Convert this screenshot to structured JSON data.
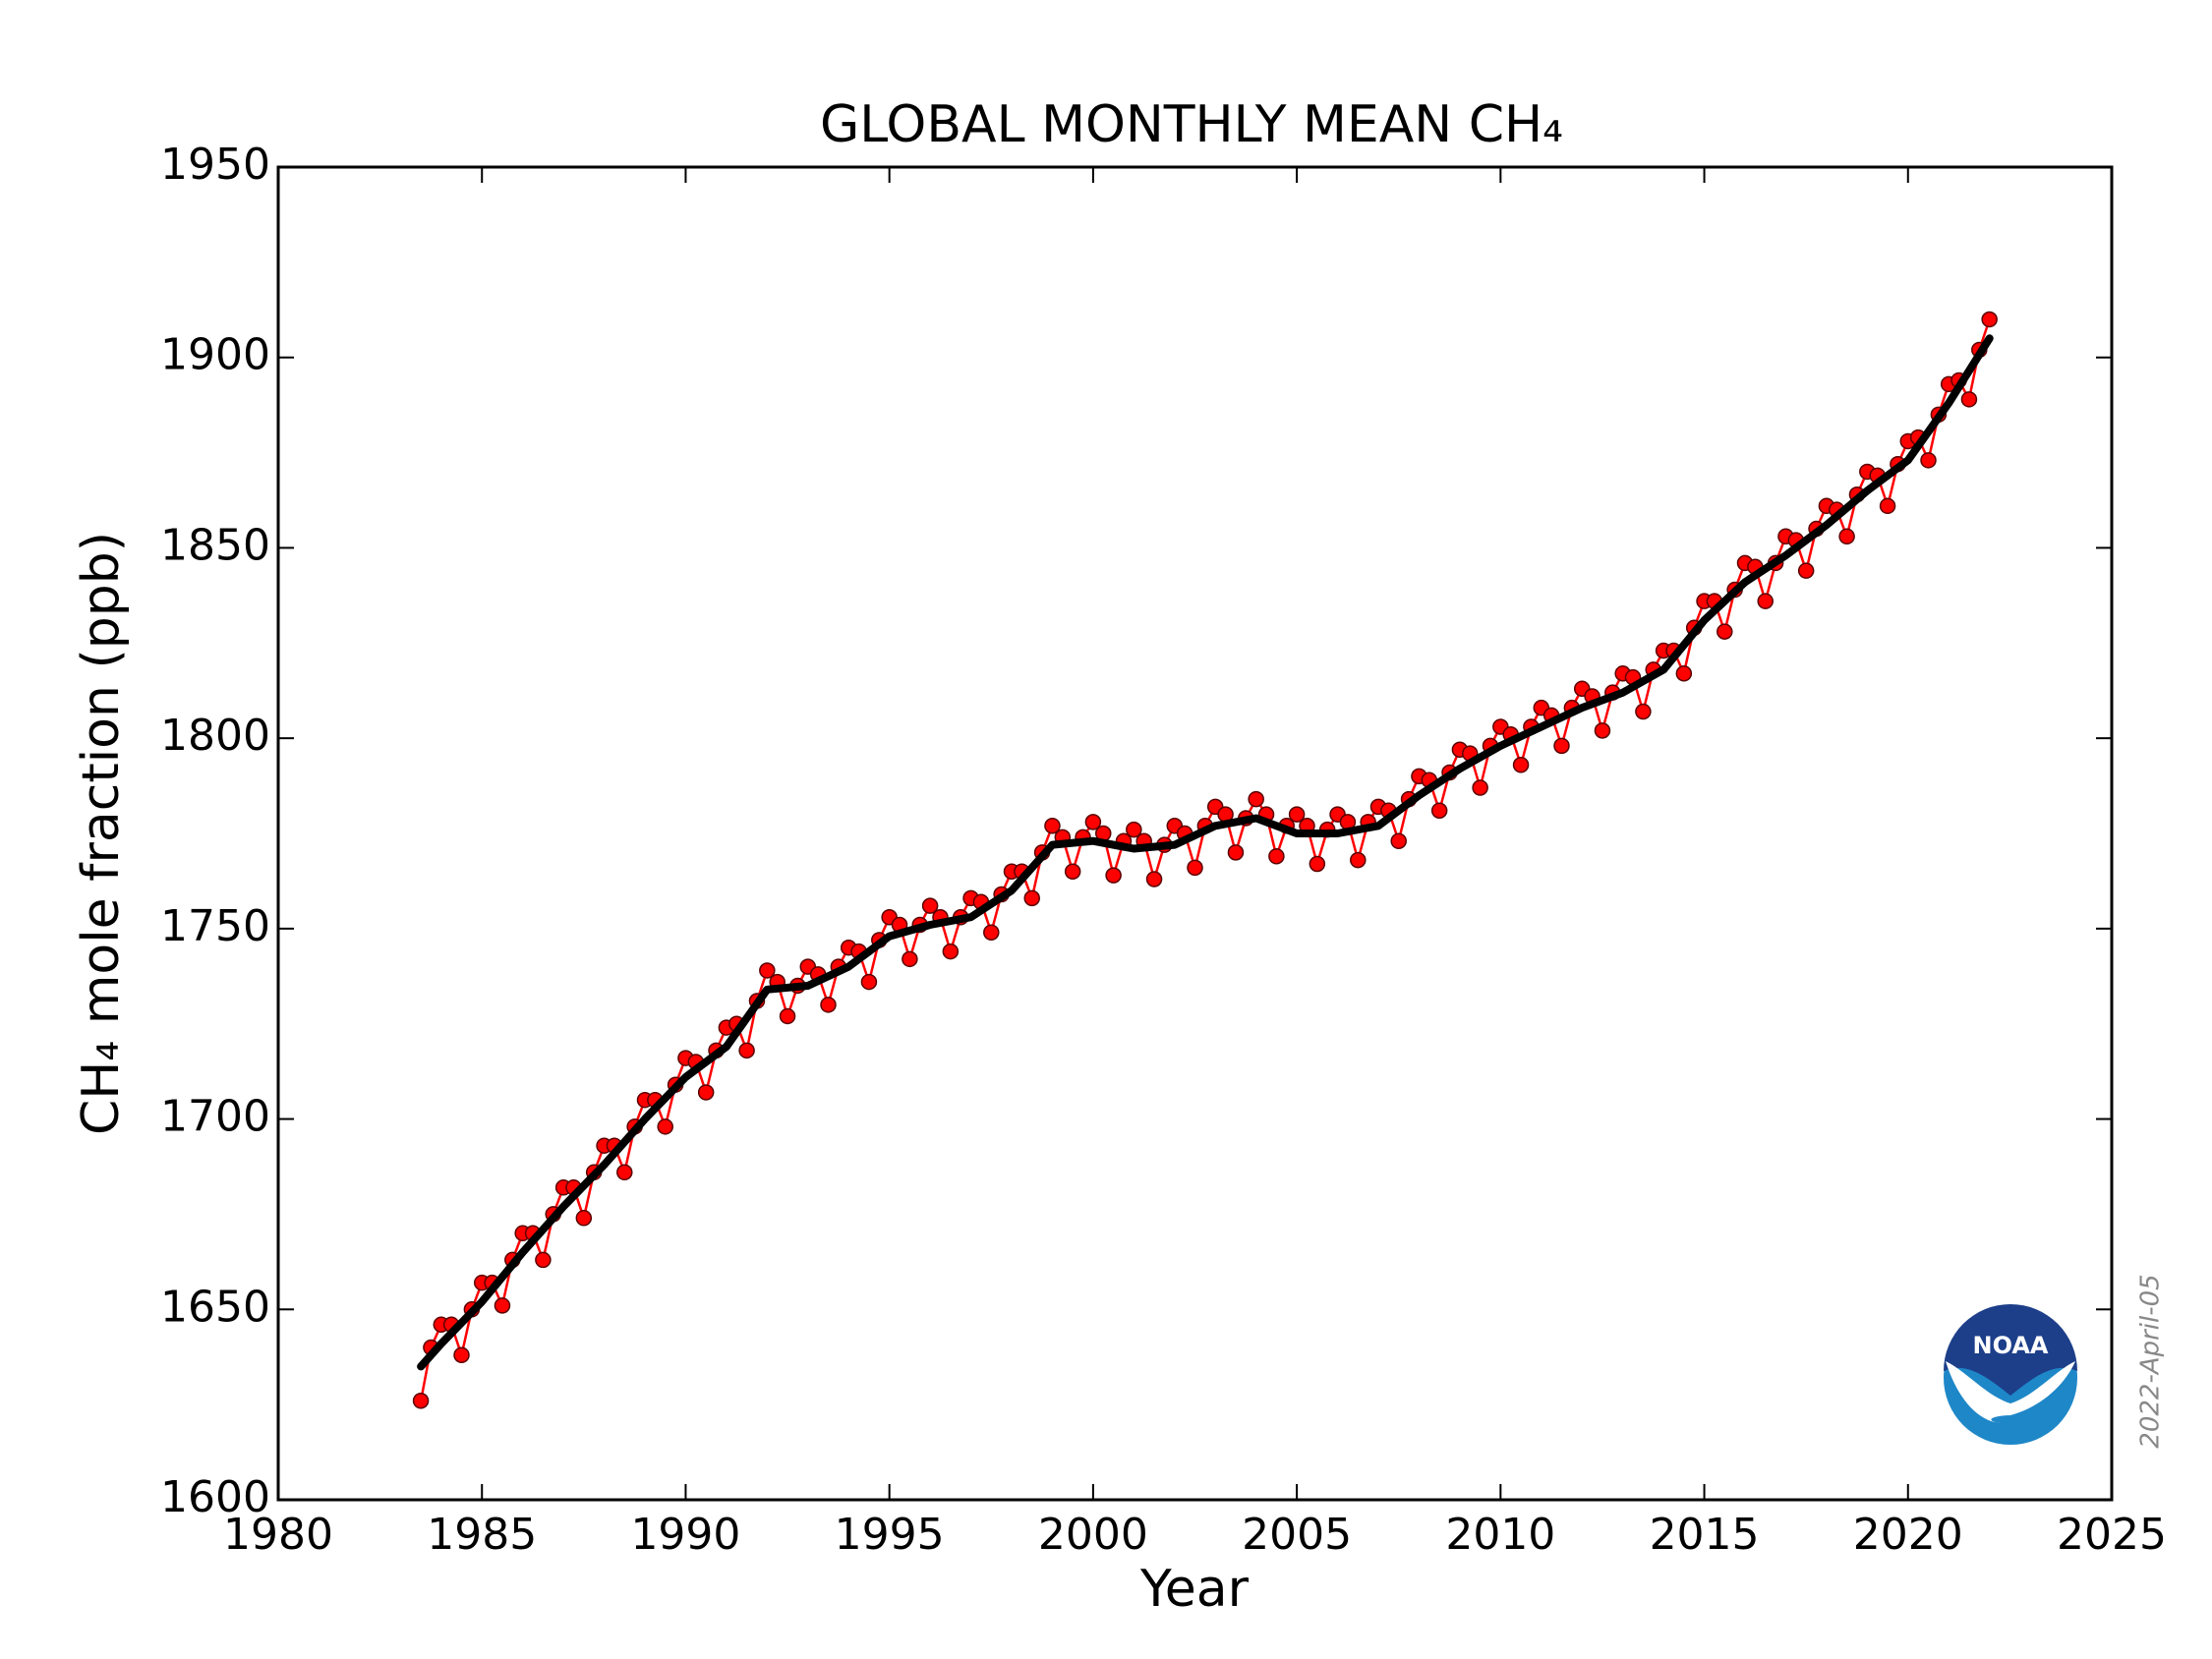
{
  "chart_data": {
    "type": "line",
    "title": "GLOBAL MONTHLY MEAN CH₄",
    "x_label": "Year",
    "y_label": "CH₄ mole fraction (ppb)",
    "annotation": "2022-April-05",
    "logo_text": "NOAA",
    "xlim": [
      1980,
      2025
    ],
    "xticks": [
      1980,
      1985,
      1990,
      1995,
      2000,
      2005,
      2010,
      2015,
      2020,
      2025
    ],
    "ylim": [
      1600,
      1950
    ],
    "yticks": [
      1600,
      1650,
      1700,
      1750,
      1800,
      1850,
      1900,
      1950
    ],
    "series": [
      {
        "color": "#ff0000",
        "markers": true,
        "x": [
          1983.5,
          1983.75,
          1984,
          1984.25,
          1984.5,
          1984.75,
          1985,
          1985.25,
          1985.5,
          1985.75,
          1986,
          1986.25,
          1986.5,
          1986.75,
          1987,
          1987.25,
          1987.5,
          1987.75,
          1988,
          1988.25,
          1988.5,
          1988.75,
          1989,
          1989.25,
          1989.5,
          1989.75,
          1990,
          1990.25,
          1990.5,
          1990.75,
          1991,
          1991.25,
          1991.5,
          1991.75,
          1992,
          1992.25,
          1992.5,
          1992.75,
          1993,
          1993.25,
          1993.5,
          1993.75,
          1994,
          1994.25,
          1994.5,
          1994.75,
          1995,
          1995.25,
          1995.5,
          1995.75,
          1996,
          1996.25,
          1996.5,
          1996.75,
          1997,
          1997.25,
          1997.5,
          1997.75,
          1998,
          1998.25,
          1998.5,
          1998.75,
          1999,
          1999.25,
          1999.5,
          1999.75,
          2000,
          2000.25,
          2000.5,
          2000.75,
          2001,
          2001.25,
          2001.5,
          2001.75,
          2002,
          2002.25,
          2002.5,
          2002.75,
          2003,
          2003.25,
          2003.5,
          2003.75,
          2004,
          2004.25,
          2004.5,
          2004.75,
          2005,
          2005.25,
          2005.5,
          2005.75,
          2006,
          2006.25,
          2006.5,
          2006.75,
          2007,
          2007.25,
          2007.5,
          2007.75,
          2008,
          2008.25,
          2008.5,
          2008.75,
          2009,
          2009.25,
          2009.5,
          2009.75,
          2010,
          2010.25,
          2010.5,
          2010.75,
          2011,
          2011.25,
          2011.5,
          2011.75,
          2012,
          2012.25,
          2012.5,
          2012.75,
          2013,
          2013.25,
          2013.5,
          2013.75,
          2014,
          2014.25,
          2014.5,
          2014.75,
          2015,
          2015.25,
          2015.5,
          2015.75,
          2016,
          2016.25,
          2016.5,
          2016.75,
          2017,
          2017.25,
          2017.5,
          2017.75,
          2018,
          2018.25,
          2018.5,
          2018.75,
          2019,
          2019.25,
          2019.5,
          2019.75,
          2020,
          2020.25,
          2020.5,
          2020.75,
          2021,
          2021.25,
          2021.5,
          2021.75,
          2022
        ],
        "values": [
          1626,
          1640,
          1646,
          1646,
          1638,
          1650,
          1657,
          1657,
          1651,
          1663,
          1670,
          1670,
          1663,
          1675,
          1682,
          1682,
          1674,
          1686,
          1693,
          1693,
          1686,
          1698,
          1705,
          1705,
          1698,
          1709,
          1716,
          1715,
          1707,
          1718,
          1724,
          1725,
          1718,
          1731,
          1739,
          1736,
          1727,
          1735,
          1740,
          1738,
          1730,
          1740,
          1745,
          1744,
          1736,
          1747,
          1753,
          1751,
          1742,
          1751,
          1756,
          1753,
          1744,
          1753,
          1758,
          1757,
          1749,
          1759,
          1765,
          1765,
          1758,
          1770,
          1777,
          1774,
          1765,
          1774,
          1778,
          1775,
          1764,
          1773,
          1776,
          1773,
          1763,
          1772,
          1777,
          1775,
          1766,
          1777,
          1782,
          1780,
          1770,
          1779,
          1784,
          1780,
          1769,
          1777,
          1780,
          1777,
          1767,
          1776,
          1780,
          1778,
          1768,
          1778,
          1782,
          1781,
          1773,
          1784,
          1790,
          1789,
          1781,
          1791,
          1797,
          1796,
          1787,
          1798,
          1803,
          1801,
          1793,
          1803,
          1808,
          1806,
          1798,
          1808,
          1813,
          1811,
          1802,
          1812,
          1817,
          1816,
          1807,
          1818,
          1823,
          1823,
          1817,
          1829,
          1836,
          1836,
          1828,
          1839,
          1846,
          1845,
          1836,
          1846,
          1853,
          1852,
          1844,
          1855,
          1861,
          1860,
          1853,
          1864,
          1870,
          1869,
          1861,
          1872,
          1878,
          1879,
          1873,
          1885,
          1893,
          1894,
          1889,
          1902,
          1910
        ]
      },
      {
        "color": "#000000",
        "markers": false,
        "x": [
          1983.5,
          1984,
          1985,
          1986,
          1987,
          1988,
          1989,
          1990,
          1991,
          1992,
          1993,
          1994,
          1995,
          1996,
          1997,
          1998,
          1999,
          2000,
          2001,
          2002,
          2003,
          2004,
          2005,
          2006,
          2007,
          2008,
          2009,
          2010,
          2011,
          2012,
          2013,
          2014,
          2015,
          2016,
          2017,
          2018,
          2019,
          2020,
          2021,
          2022
        ],
        "values": [
          1635,
          1641,
          1652,
          1665,
          1677,
          1688,
          1700,
          1711,
          1719,
          1734,
          1735,
          1740,
          1748,
          1751,
          1753,
          1760,
          1772,
          1773,
          1771,
          1772,
          1777,
          1779,
          1775,
          1775,
          1777,
          1785,
          1792,
          1798,
          1803,
          1808,
          1812,
          1818,
          1831,
          1841,
          1848,
          1856,
          1865,
          1873,
          1888,
          1905
        ]
      }
    ]
  }
}
